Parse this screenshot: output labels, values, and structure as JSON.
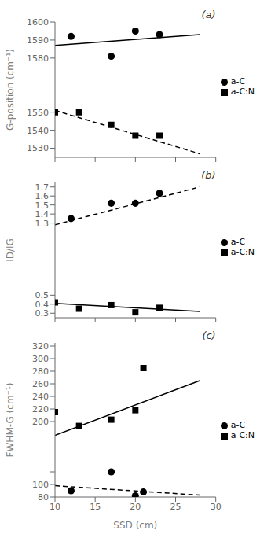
{
  "chart_data": [
    {
      "type": "scatter",
      "annotations": [
        "(a)"
      ],
      "ylabel": "G-position (cm⁻¹)",
      "xlim": [
        10,
        30
      ],
      "xticks": [
        10,
        15,
        20,
        25,
        30
      ],
      "ylim": [
        1525,
        1600
      ],
      "yticks": [
        1530,
        1540,
        1550,
        1580,
        1590,
        1600
      ],
      "tick_labels": "y",
      "grid": false,
      "legend": "right",
      "series": [
        {
          "name": "a-C:N",
          "type": "scatter",
          "marker": "square",
          "color": "black",
          "x": [
            10,
            13,
            17,
            20,
            23
          ],
          "values": [
            1550,
            1550,
            1543,
            1537,
            1537
          ]
        },
        {
          "name": "a-C",
          "type": "scatter",
          "marker": "circle",
          "color": "black",
          "x": [
            12,
            17,
            20,
            23
          ],
          "values": [
            1592,
            1581,
            1595,
            1593
          ]
        },
        {
          "type": "line",
          "line_style": "dashed",
          "color": "black",
          "x": [
            10,
            28
          ],
          "values": [
            1551,
            1527
          ]
        },
        {
          "type": "line",
          "line_style": "solid",
          "color": "black",
          "x": [
            10,
            28
          ],
          "values": [
            1587,
            1593
          ]
        }
      ]
    },
    {
      "type": "scatter",
      "annotations": [
        "(b)"
      ],
      "ylabel": "ID/IG",
      "xlim": [
        10,
        30
      ],
      "xticks": [
        10,
        15,
        20,
        25,
        30
      ],
      "ylim": [
        0.25,
        1.75
      ],
      "yticks": [
        0.3,
        0.4,
        0.5,
        1.3,
        1.4,
        1.5,
        1.6,
        1.7
      ],
      "tick_labels": "y",
      "grid": false,
      "legend": "right",
      "series": [
        {
          "name": "a-C:N",
          "type": "scatter",
          "marker": "square",
          "color": "black",
          "x": [
            10,
            13,
            17,
            20,
            23
          ],
          "values": [
            0.42,
            0.35,
            0.39,
            0.31,
            0.36
          ]
        },
        {
          "name": "a-C",
          "type": "scatter",
          "marker": "circle",
          "color": "black",
          "x": [
            12,
            17,
            20,
            23
          ],
          "values": [
            1.35,
            1.52,
            1.52,
            1.63
          ]
        },
        {
          "type": "line",
          "line_style": "solid",
          "color": "black",
          "x": [
            10,
            28
          ],
          "values": [
            0.41,
            0.32
          ]
        },
        {
          "type": "line",
          "line_style": "dashed",
          "color": "black",
          "x": [
            10,
            28
          ],
          "values": [
            1.28,
            1.7
          ]
        }
      ]
    },
    {
      "type": "scatter",
      "annotations": [
        "(c)"
      ],
      "ylabel": "FWHM-G (cm⁻¹)",
      "xlabel": "SSD (cm)",
      "xlim": [
        10,
        30
      ],
      "xticks": [
        10,
        15,
        20,
        25,
        30
      ],
      "ylim": [
        80,
        325
      ],
      "yticks": [
        80,
        100,
        {
          "value": 120,
          "label": null
        },
        200,
        220,
        240,
        260,
        280,
        300,
        320
      ],
      "grid": false,
      "legend": "right",
      "series": [
        {
          "name": "a-C:N",
          "type": "scatter",
          "marker": "square",
          "color": "black",
          "x": [
            10,
            13,
            17,
            20,
            21
          ],
          "values": [
            215,
            193,
            203,
            218,
            285
          ]
        },
        {
          "name": "a-C",
          "type": "scatter",
          "marker": "circle",
          "color": "black",
          "x": [
            12,
            17,
            20,
            21
          ],
          "values": [
            90,
            120,
            82,
            88
          ]
        },
        {
          "type": "line",
          "line_style": "solid",
          "color": "black",
          "x": [
            10,
            28
          ],
          "values": [
            178,
            265
          ]
        },
        {
          "type": "line",
          "line_style": "dashed",
          "color": "black",
          "x": [
            10,
            28
          ],
          "values": [
            98,
            83
          ]
        }
      ]
    }
  ]
}
